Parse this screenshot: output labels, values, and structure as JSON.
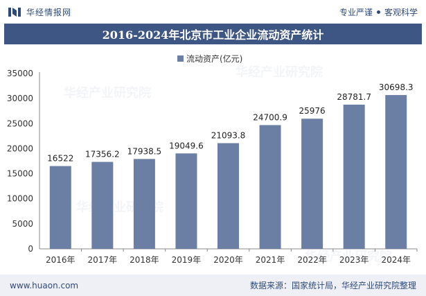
{
  "header": {
    "brand_name": "华经情报网",
    "tagline_left": "专业严谨",
    "tagline_right": "客观科学"
  },
  "colors": {
    "bar": "#6b7fa5",
    "title_bg": "#3e5683",
    "brand": "#2e4a7a"
  },
  "watermark": "华经产业研究院",
  "footer": {
    "url": "www.huaon.com",
    "source": "数据来源：国家统计局，华经产业研究院整理"
  },
  "chart_data": {
    "type": "bar",
    "title": "2016-2024年北京市工业企业流动资产统计",
    "xlabel": "",
    "ylabel": "",
    "ylim": [
      0,
      35000
    ],
    "yticks": [
      0,
      5000,
      10000,
      15000,
      20000,
      25000,
      30000,
      35000
    ],
    "grid": false,
    "legend_position": "top-center",
    "categories": [
      "2016年",
      "2017年",
      "2018年",
      "2019年",
      "2020年",
      "2021年",
      "2022年",
      "2023年",
      "2024年"
    ],
    "series": [
      {
        "name": "流动资产(亿元)",
        "values": [
          16522,
          17356.2,
          17938.5,
          19049.6,
          21093.8,
          24700.9,
          25976,
          28781.7,
          30698.3
        ],
        "labels": [
          "16522",
          "17356.2",
          "17938.5",
          "19049.6",
          "21093.8",
          "24700.9",
          "25976",
          "28781.7",
          "30698.3"
        ]
      }
    ]
  }
}
